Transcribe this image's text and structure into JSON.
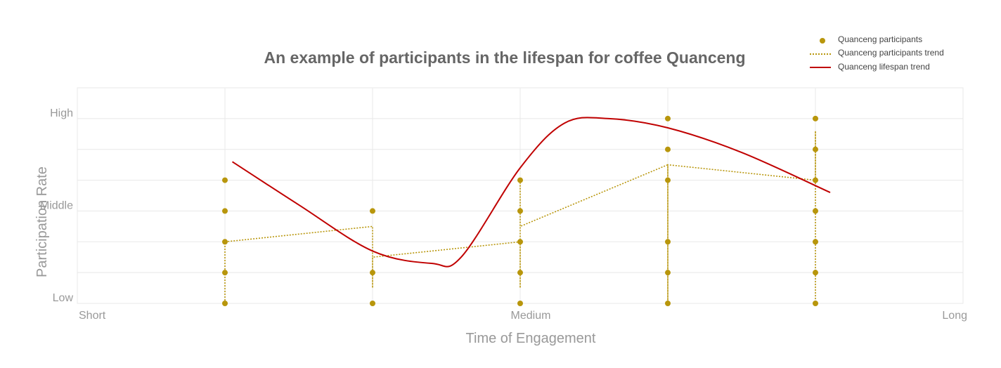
{
  "chart_data": {
    "type": "scatter",
    "title": "An example of participants in the lifespan for coffee Quanceng",
    "xlabel": "Time of Engagement",
    "ylabel": "Participation Rate",
    "xlim": [
      0,
      6
    ],
    "ylim": [
      0,
      7
    ],
    "x_ticks": [
      {
        "value": 0,
        "label": "Short"
      },
      {
        "value": 3,
        "label": "Medium"
      },
      {
        "value": 6,
        "label": "Long"
      }
    ],
    "y_ticks": [
      {
        "value": 0.2,
        "label": "Low"
      },
      {
        "value": 3.2,
        "label": "Middle"
      },
      {
        "value": 6.2,
        "label": "High"
      }
    ],
    "y_grid": [
      0,
      1,
      2,
      3,
      4,
      5,
      6,
      7
    ],
    "x_grid": [
      1,
      2,
      3,
      4,
      5
    ],
    "grid": true,
    "legend_position": "top-right",
    "colors": {
      "participants": "#b8960c",
      "lifespan": "#c00000"
    },
    "series": [
      {
        "name": "Quanceng participants",
        "kind": "points",
        "points": [
          [
            1,
            0
          ],
          [
            1,
            1
          ],
          [
            1,
            2
          ],
          [
            1,
            3
          ],
          [
            1,
            4
          ],
          [
            2,
            0
          ],
          [
            2,
            1
          ],
          [
            2,
            3
          ],
          [
            3,
            0
          ],
          [
            3,
            1
          ],
          [
            3,
            2
          ],
          [
            3,
            3
          ],
          [
            3,
            4
          ],
          [
            4,
            0
          ],
          [
            4,
            1
          ],
          [
            4,
            2
          ],
          [
            4,
            4
          ],
          [
            4,
            5
          ],
          [
            4,
            6
          ],
          [
            5,
            0
          ],
          [
            5,
            1
          ],
          [
            5,
            2
          ],
          [
            5,
            3
          ],
          [
            5,
            4
          ],
          [
            5,
            5
          ],
          [
            5,
            6
          ]
        ]
      },
      {
        "name": "Quanceng participants trend",
        "kind": "dotted-line",
        "points": [
          [
            1,
            0
          ],
          [
            1,
            2
          ],
          [
            2,
            2.5
          ],
          [
            2,
            0.5
          ],
          [
            2,
            1.5
          ],
          [
            3,
            2
          ],
          [
            3,
            0.5
          ],
          [
            3,
            4
          ],
          [
            3,
            2.5
          ],
          [
            4,
            4.5
          ],
          [
            4,
            0
          ],
          [
            4,
            4.5
          ],
          [
            5,
            4
          ],
          [
            5,
            5.6
          ],
          [
            5,
            0
          ]
        ]
      },
      {
        "name": "Quanceng lifespan trend",
        "kind": "smooth-line",
        "points": [
          [
            1.05,
            4.6
          ],
          [
            1.5,
            3.2
          ],
          [
            2,
            1.7
          ],
          [
            2.4,
            1.3
          ],
          [
            2.6,
            1.5
          ],
          [
            3,
            4.4
          ],
          [
            3.3,
            5.85
          ],
          [
            3.6,
            6.0
          ],
          [
            4,
            5.7
          ],
          [
            4.5,
            4.9
          ],
          [
            5.1,
            3.6
          ]
        ]
      }
    ]
  }
}
